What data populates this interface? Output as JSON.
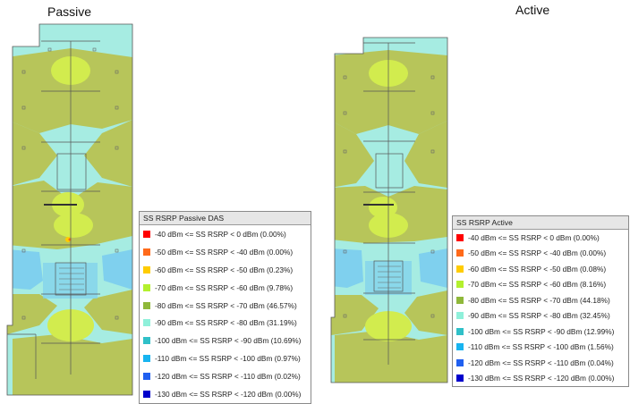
{
  "panels": {
    "passive": {
      "title": "Passive"
    },
    "active": {
      "title": "Active"
    }
  },
  "legends": {
    "passive": {
      "title": "SS RSRP Passive DAS",
      "items": [
        {
          "label": "-40 dBm <= SS RSRP < 0 dBm  (0.00%)",
          "color": "#ff0000"
        },
        {
          "label": "-50 dBm <= SS RSRP < -40 dBm  (0.00%)",
          "color": "#ff6a1a"
        },
        {
          "label": "-60 dBm <= SS RSRP < -50 dBm  (0.23%)",
          "color": "#ffcc00"
        },
        {
          "label": "-70 dBm <= SS RSRP < -60 dBm  (9.78%)",
          "color": "#b3f02e"
        },
        {
          "label": "-80 dBm <= SS RSRP < -70 dBm  (46.57%)",
          "color": "#8fb83a"
        },
        {
          "label": "-90 dBm <= SS RSRP < -80 dBm  (31.19%)",
          "color": "#8ff0da"
        },
        {
          "label": "-100 dBm <= SS RSRP < -90 dBm  (10.69%)",
          "color": "#30c0c8"
        },
        {
          "label": "-110 dBm <= SS RSRP < -100 dBm  (0.97%)",
          "color": "#18b4f0"
        },
        {
          "label": "-120 dBm <= SS RSRP < -110 dBm  (0.02%)",
          "color": "#2060f0"
        },
        {
          "label": "-130 dBm <= SS RSRP < -120 dBm  (0.00%)",
          "color": "#0000cc"
        }
      ]
    },
    "active": {
      "title": "SS RSRP Active",
      "items": [
        {
          "label": "-40 dBm <= SS RSRP < 0 dBm  (0.00%)",
          "color": "#ff0000"
        },
        {
          "label": "-50 dBm <= SS RSRP < -40 dBm  (0.00%)",
          "color": "#ff6a1a"
        },
        {
          "label": "-60 dBm <= SS RSRP < -50 dBm  (0.08%)",
          "color": "#ffcc00"
        },
        {
          "label": "-70 dBm <= SS RSRP < -60 dBm  (8.16%)",
          "color": "#b3f02e"
        },
        {
          "label": "-80 dBm <= SS RSRP < -70 dBm  (44.18%)",
          "color": "#8fb83a"
        },
        {
          "label": "-90 dBm <= SS RSRP < -80 dBm  (32.45%)",
          "color": "#8ff0da"
        },
        {
          "label": "-100 dBm <= SS RSRP < -90 dBm  (12.99%)",
          "color": "#30c0c8"
        },
        {
          "label": "-110 dBm <= SS RSRP < -100 dBm  (1.56%)",
          "color": "#18b4f0"
        },
        {
          "label": "-120 dBm <= SS RSRP < -110 dBm  (0.04%)",
          "color": "#2060f0"
        },
        {
          "label": "-130 dBm <= SS RSRP < -120 dBm  (0.00%)",
          "color": "#0000cc"
        }
      ]
    }
  },
  "colors": {
    "cyan_light": "#a6ece2",
    "cyan": "#7fe0d6",
    "olive": "#b7c55a",
    "olive_dark": "#a3b445",
    "lime": "#d2ec4e",
    "blue_light": "#7fd0ee",
    "walls": "#555555"
  }
}
